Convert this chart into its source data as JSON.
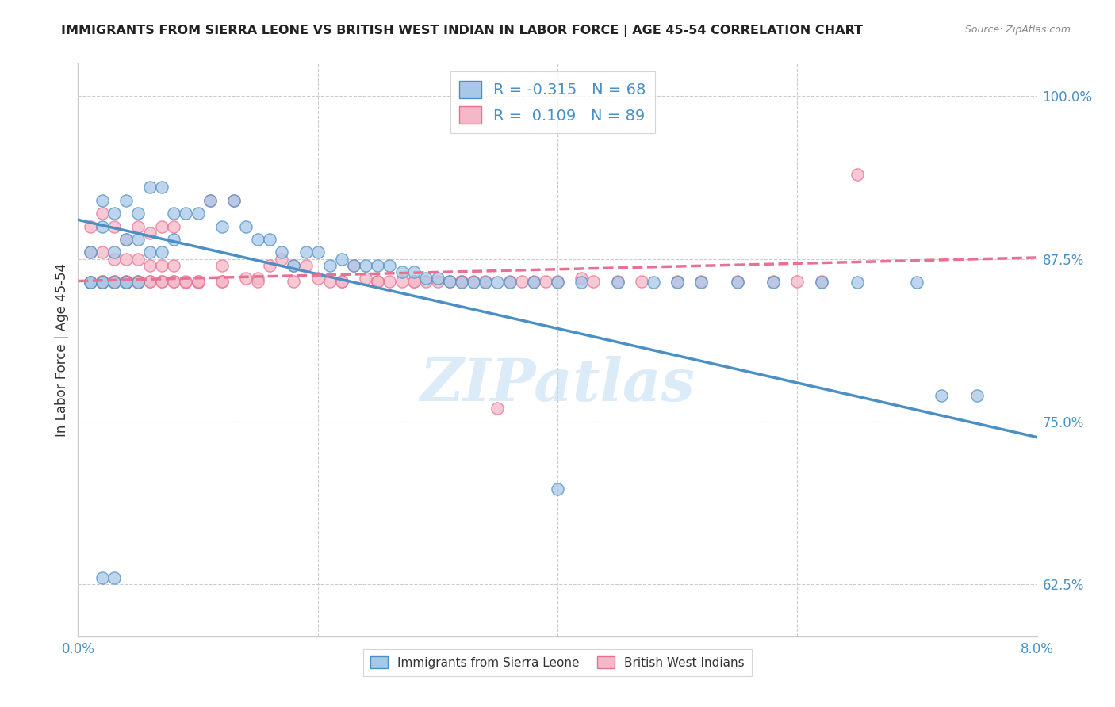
{
  "title": "IMMIGRANTS FROM SIERRA LEONE VS BRITISH WEST INDIAN IN LABOR FORCE | AGE 45-54 CORRELATION CHART",
  "source": "Source: ZipAtlas.com",
  "ylabel": "In Labor Force | Age 45-54",
  "xlim": [
    0.0,
    0.08
  ],
  "ylim": [
    0.585,
    1.025
  ],
  "ytick_labels_right": [
    "62.5%",
    "75.0%",
    "87.5%",
    "100.0%"
  ],
  "ytick_vals_right": [
    0.625,
    0.75,
    0.875,
    1.0
  ],
  "color_blue": "#a8c8e8",
  "color_pink": "#f4b8c8",
  "line_blue": "#4a90c4",
  "line_pink": "#e87090",
  "R_blue": -0.315,
  "N_blue": 68,
  "R_pink": 0.109,
  "N_pink": 89,
  "watermark": "ZIPatlas",
  "blue_line_x": [
    0.0,
    0.08
  ],
  "blue_line_y": [
    0.905,
    0.738
  ],
  "pink_line_x": [
    0.0,
    0.08
  ],
  "pink_line_y": [
    0.858,
    0.876
  ],
  "blue_x": [
    0.001,
    0.001,
    0.002,
    0.002,
    0.002,
    0.003,
    0.003,
    0.003,
    0.004,
    0.004,
    0.004,
    0.005,
    0.005,
    0.005,
    0.006,
    0.006,
    0.007,
    0.007,
    0.008,
    0.008,
    0.009,
    0.01,
    0.011,
    0.012,
    0.013,
    0.014,
    0.015,
    0.016,
    0.017,
    0.018,
    0.019,
    0.02,
    0.021,
    0.022,
    0.023,
    0.024,
    0.025,
    0.026,
    0.027,
    0.028,
    0.029,
    0.03,
    0.031,
    0.032,
    0.033,
    0.034,
    0.035,
    0.036,
    0.038,
    0.04,
    0.042,
    0.045,
    0.048,
    0.05,
    0.052,
    0.055,
    0.058,
    0.062,
    0.065,
    0.07,
    0.072,
    0.075,
    0.04,
    0.003,
    0.002,
    0.004,
    0.001,
    0.002
  ],
  "blue_y": [
    0.857,
    0.88,
    0.857,
    0.9,
    0.92,
    0.857,
    0.88,
    0.91,
    0.857,
    0.89,
    0.92,
    0.857,
    0.89,
    0.91,
    0.88,
    0.93,
    0.88,
    0.93,
    0.89,
    0.91,
    0.91,
    0.91,
    0.92,
    0.9,
    0.92,
    0.9,
    0.89,
    0.89,
    0.88,
    0.87,
    0.88,
    0.88,
    0.87,
    0.875,
    0.87,
    0.87,
    0.87,
    0.87,
    0.865,
    0.865,
    0.86,
    0.86,
    0.858,
    0.857,
    0.857,
    0.857,
    0.857,
    0.857,
    0.857,
    0.857,
    0.857,
    0.857,
    0.857,
    0.857,
    0.857,
    0.857,
    0.857,
    0.857,
    0.857,
    0.857,
    0.77,
    0.77,
    0.698,
    0.63,
    0.63,
    0.857,
    0.857,
    0.857
  ],
  "pink_x": [
    0.001,
    0.001,
    0.001,
    0.002,
    0.002,
    0.002,
    0.003,
    0.003,
    0.003,
    0.004,
    0.004,
    0.004,
    0.005,
    0.005,
    0.005,
    0.006,
    0.006,
    0.007,
    0.007,
    0.008,
    0.008,
    0.009,
    0.01,
    0.011,
    0.012,
    0.013,
    0.014,
    0.015,
    0.016,
    0.017,
    0.018,
    0.019,
    0.02,
    0.021,
    0.022,
    0.023,
    0.024,
    0.025,
    0.026,
    0.027,
    0.028,
    0.029,
    0.03,
    0.031,
    0.032,
    0.033,
    0.034,
    0.035,
    0.036,
    0.037,
    0.038,
    0.039,
    0.04,
    0.042,
    0.043,
    0.045,
    0.047,
    0.05,
    0.052,
    0.055,
    0.058,
    0.06,
    0.062,
    0.065,
    0.002,
    0.003,
    0.004,
    0.005,
    0.006,
    0.007,
    0.008,
    0.01,
    0.012,
    0.015,
    0.018,
    0.022,
    0.025,
    0.028,
    0.032,
    0.002,
    0.003,
    0.004,
    0.005,
    0.006,
    0.007,
    0.008,
    0.009,
    0.01,
    0.012
  ],
  "pink_y": [
    0.857,
    0.88,
    0.9,
    0.857,
    0.88,
    0.91,
    0.857,
    0.875,
    0.9,
    0.857,
    0.875,
    0.89,
    0.857,
    0.875,
    0.9,
    0.87,
    0.895,
    0.87,
    0.9,
    0.87,
    0.9,
    0.857,
    0.857,
    0.92,
    0.87,
    0.92,
    0.86,
    0.86,
    0.87,
    0.875,
    0.87,
    0.87,
    0.86,
    0.858,
    0.858,
    0.87,
    0.86,
    0.858,
    0.858,
    0.858,
    0.858,
    0.858,
    0.858,
    0.858,
    0.858,
    0.858,
    0.858,
    0.76,
    0.858,
    0.858,
    0.858,
    0.858,
    0.858,
    0.86,
    0.858,
    0.858,
    0.858,
    0.858,
    0.858,
    0.858,
    0.858,
    0.858,
    0.858,
    0.94,
    0.858,
    0.858,
    0.858,
    0.858,
    0.858,
    0.858,
    0.858,
    0.858,
    0.858,
    0.858,
    0.858,
    0.858,
    0.858,
    0.858,
    0.858,
    0.858,
    0.858,
    0.858,
    0.858,
    0.858,
    0.858,
    0.858,
    0.858,
    0.858,
    0.858
  ]
}
